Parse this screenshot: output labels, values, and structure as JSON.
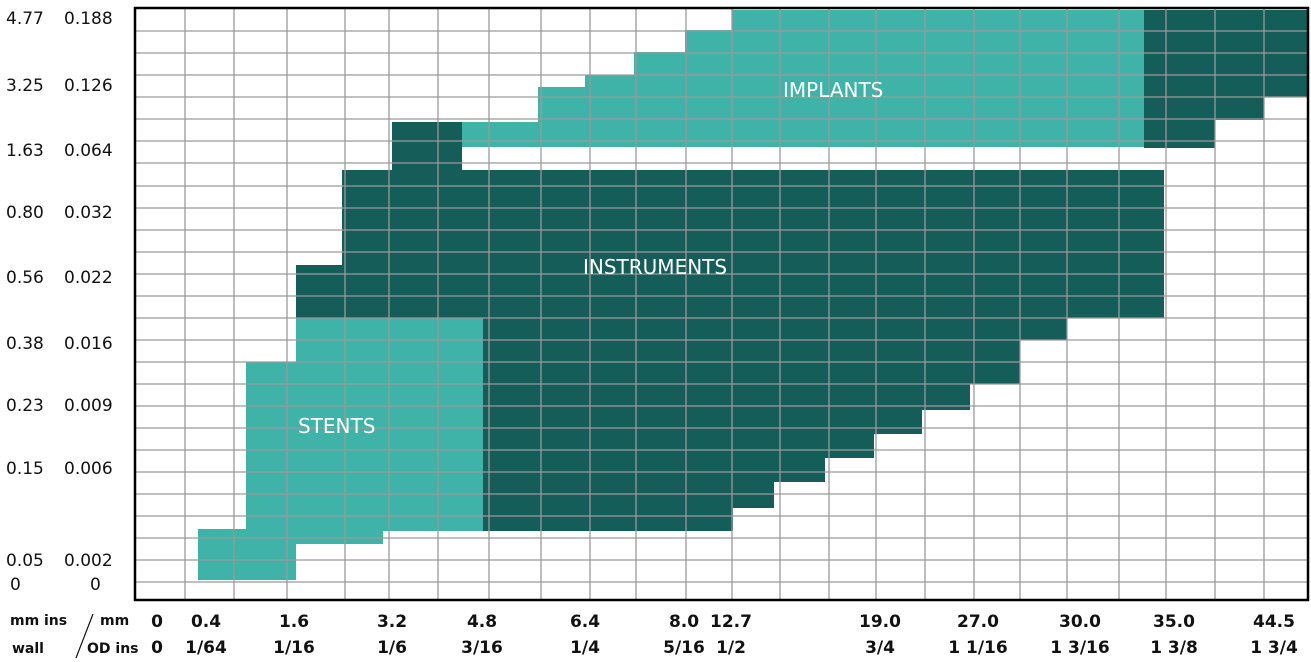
{
  "chart_data": {
    "type": "heatmap",
    "y_axis": {
      "title_mm": "mm",
      "title_ins": "ins",
      "title_wall": "wall",
      "ticks": [
        {
          "mm": "4.77",
          "ins": "0.188",
          "row": 1
        },
        {
          "mm": "3.25",
          "ins": "0.126",
          "row": 4
        },
        {
          "mm": "1.63",
          "ins": "0.064",
          "row": 7
        },
        {
          "mm": "0.80",
          "ins": "0.032",
          "row": 10
        },
        {
          "mm": "0.56",
          "ins": "0.022",
          "row": 13
        },
        {
          "mm": "0.38",
          "ins": "0.016",
          "row": 16
        },
        {
          "mm": "0.23",
          "ins": "0.009",
          "row": 19
        },
        {
          "mm": "0.15",
          "ins": "0.006",
          "row": 22
        },
        {
          "mm": "0.05",
          "ins": "0.002",
          "row": 26
        },
        {
          "mm": "0",
          "ins": "0",
          "row": 27
        }
      ]
    },
    "x_axis": {
      "title_mm": "mm",
      "title_od": "OD ins",
      "ticks": [
        {
          "mm": "0",
          "ins": "0"
        },
        {
          "mm": "0.4",
          "ins": "1/64"
        },
        {
          "mm": "1.6",
          "ins": "1/16"
        },
        {
          "mm": "3.2",
          "ins": "1/6"
        },
        {
          "mm": "4.8",
          "ins": "3/16"
        },
        {
          "mm": "6.4",
          "ins": "1/4"
        },
        {
          "mm": "8.0",
          "ins": "5/16"
        },
        {
          "mm": "12.7",
          "ins": "1/2"
        },
        {
          "mm": "19.0",
          "ins": "3/4"
        },
        {
          "mm": "27.0",
          "ins": "1 1/16"
        },
        {
          "mm": "30.0",
          "ins": "1 3/16"
        },
        {
          "mm": "35.0",
          "ins": "1 3/8"
        },
        {
          "mm": "44.5",
          "ins": "1 3/4"
        }
      ]
    },
    "regions": [
      {
        "name": "IMPLANTS",
        "color": "#3fb3a8"
      },
      {
        "name": "INSTRUMENTS",
        "color": "#155d59"
      },
      {
        "name": "STENTS",
        "color": "#3fb3a8"
      }
    ],
    "grid": true,
    "colors": {
      "grid": "#9a9a9a",
      "light_teal": "#3fb3a8",
      "dark_teal": "#155d59"
    }
  }
}
